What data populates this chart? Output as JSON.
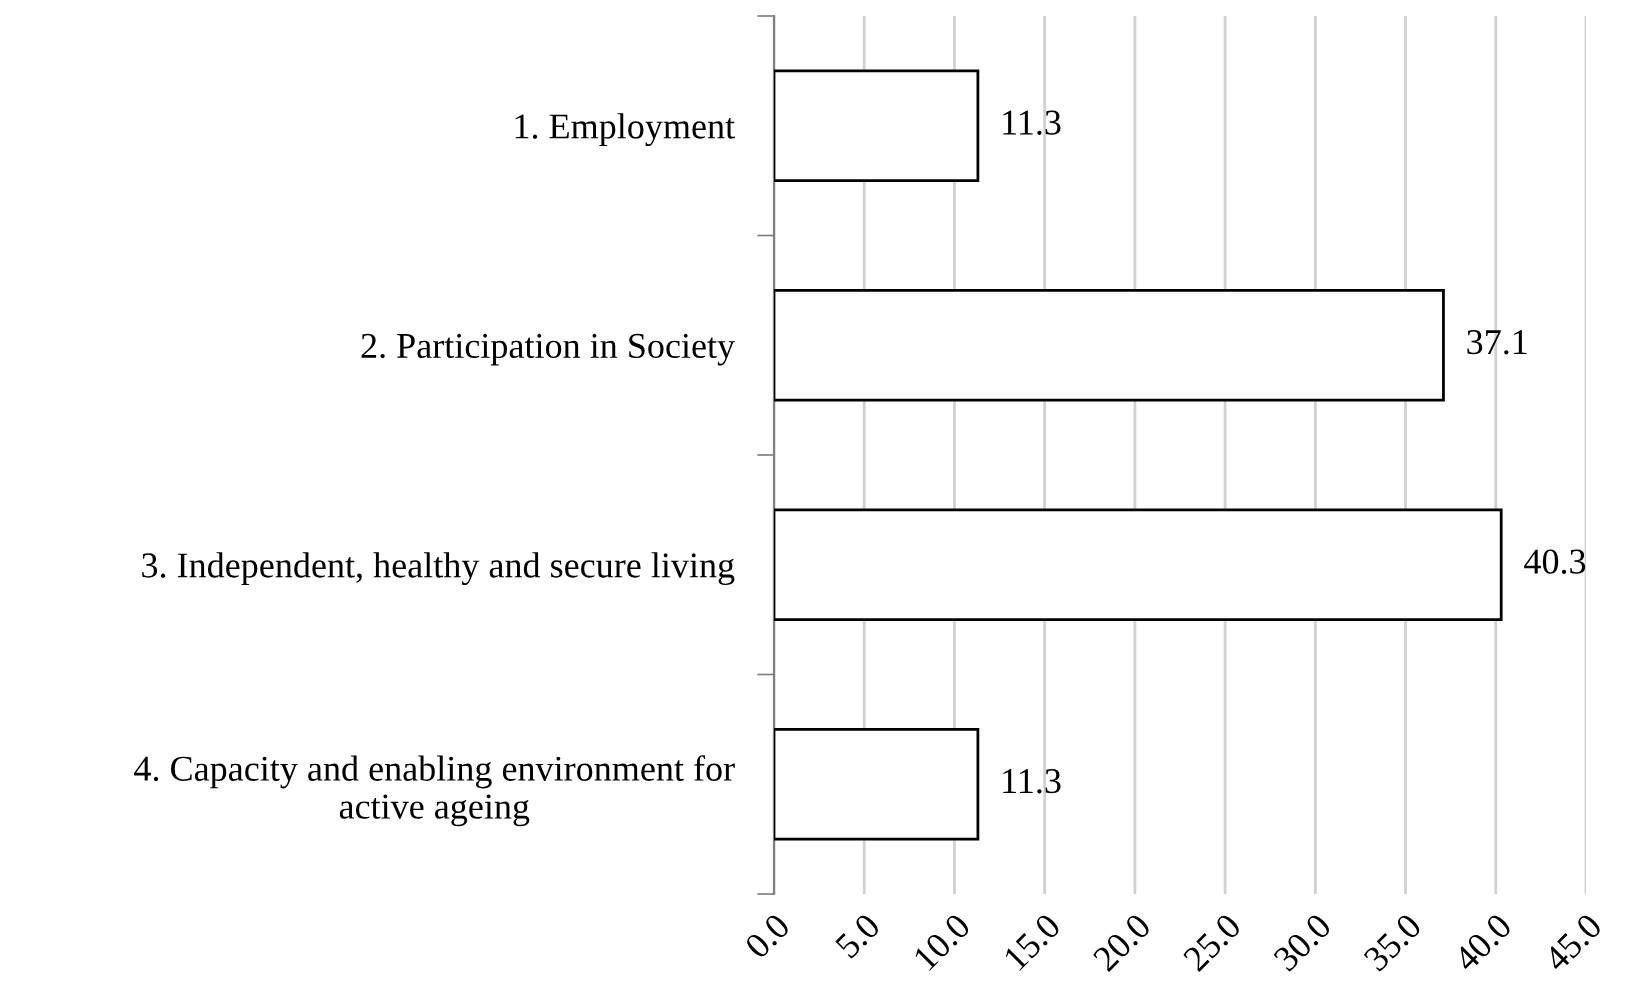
{
  "chart_data": {
    "type": "bar",
    "orientation": "horizontal",
    "categories": [
      "1. Employment",
      "2. Participation in Society",
      "3. Independent, healthy and secure living",
      "4. Capacity and enabling environment for\nactive ageing"
    ],
    "values": [
      11.3,
      37.1,
      40.3,
      11.3
    ],
    "color": "#ffffff",
    "data_labels": true,
    "xlim": [
      0,
      45
    ],
    "xticks": [
      {
        "value": 0,
        "label": "0.0"
      },
      {
        "value": 5,
        "label": "5.0"
      },
      {
        "value": 10,
        "label": "10.0"
      },
      {
        "value": 15,
        "label": "15.0"
      },
      {
        "value": 20,
        "label": "20.0"
      },
      {
        "value": 25,
        "label": "25.0"
      },
      {
        "value": 30,
        "label": "30.0"
      },
      {
        "value": 35,
        "label": "35.0"
      },
      {
        "value": 40,
        "label": "40.0"
      },
      {
        "value": 45,
        "label": "45.0"
      }
    ],
    "grid": "x",
    "legend": false
  }
}
